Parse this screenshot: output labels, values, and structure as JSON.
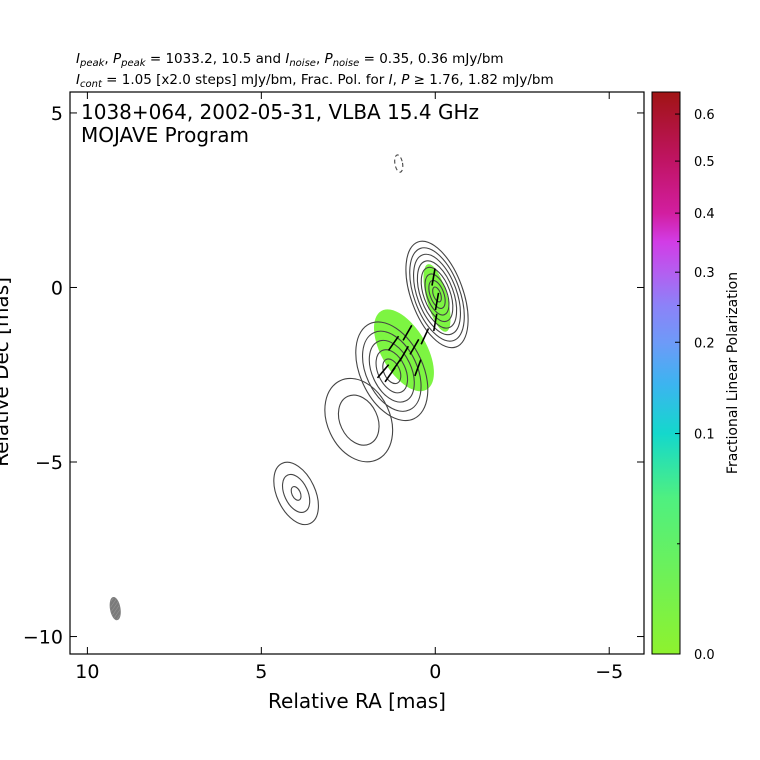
{
  "header": {
    "line1_parts": [
      {
        "t": "I",
        "i": true
      },
      {
        "t": "peak",
        "sub": true
      },
      {
        "t": ", "
      },
      {
        "t": "P",
        "i": true
      },
      {
        "t": "peak",
        "sub": true
      },
      {
        "t": " = 1033.2, 10.5 and "
      },
      {
        "t": "I",
        "i": true
      },
      {
        "t": "noise",
        "sub": true
      },
      {
        "t": ", "
      },
      {
        "t": "P",
        "i": true
      },
      {
        "t": "noise",
        "sub": true
      },
      {
        "t": " = 0.35, 0.36 mJy/bm"
      }
    ],
    "line2_parts": [
      {
        "t": "I",
        "i": true
      },
      {
        "t": "cont",
        "sub": true
      },
      {
        "t": " = 1.05 [x2.0 steps] mJy/bm, Frac. Pol. for "
      },
      {
        "t": "I",
        "i": true
      },
      {
        "t": ", "
      },
      {
        "t": "P",
        "i": true
      },
      {
        "t": " ≥  1.76, 1.82 mJy/bm"
      }
    ]
  },
  "chart_data": {
    "type": "contour",
    "title_line1": "1038+064, 2002-05-31, VLBA 15.4 GHz",
    "title_line2": "MOJAVE Program",
    "xlabel": "Relative RA [mas]",
    "ylabel": "Relative Dec [mas]",
    "xlim": [
      10.5,
      -6.0
    ],
    "ylim": [
      -10.5,
      5.6
    ],
    "x_ticks": [
      {
        "value": 10,
        "label": "10"
      },
      {
        "value": 5,
        "label": "5"
      },
      {
        "value": 0,
        "label": "0"
      },
      {
        "value": -5,
        "label": "−5"
      }
    ],
    "y_ticks": [
      {
        "value": 5,
        "label": "5"
      },
      {
        "value": 0,
        "label": "0"
      },
      {
        "value": -5,
        "label": "−5"
      },
      {
        "value": -10,
        "label": "−10"
      }
    ],
    "colors": {
      "contour": "#444444",
      "negative_contour": "#444444",
      "beam": "#808080",
      "evpa_stick": "#000000",
      "frac_pol_fill": "#7df542"
    },
    "components": [
      {
        "name": "core",
        "x": -0.05,
        "y": -0.2,
        "bmaj": 3.2,
        "bmin": 1.5,
        "pa_deg": -20,
        "levels": 8,
        "inner_scale": 0.14
      },
      {
        "name": "inner-jet",
        "x": 1.25,
        "y": -2.4,
        "bmaj": 3.0,
        "bmin": 1.8,
        "pa_deg": -25,
        "levels": 5,
        "inner_scale": 0.25
      },
      {
        "name": "extended-jet",
        "x": 2.2,
        "y": -3.8,
        "bmaj": 2.5,
        "bmin": 1.8,
        "pa_deg": -25,
        "levels": 2,
        "inner_scale": 0.6
      },
      {
        "name": "outer-component",
        "x": 4.0,
        "y": -5.9,
        "bmaj": 1.9,
        "bmin": 1.1,
        "pa_deg": -25,
        "levels": 3,
        "inner_scale": 0.22
      }
    ],
    "negative_contours": [
      {
        "x": 1.05,
        "y": 3.55,
        "bmaj": 0.5,
        "bmin": 0.22,
        "pa_deg": -10
      }
    ],
    "beam": {
      "x": 9.2,
      "y": -9.2,
      "bmaj": 0.65,
      "bmin": 0.28,
      "pa_deg": -10
    },
    "fractional_pol_regions": [
      {
        "x": -0.05,
        "y": -0.3,
        "rx": 0.3,
        "ry": 1.0,
        "pa_deg": -15,
        "frac_pol": 0.01
      },
      {
        "x": 0.9,
        "y": -1.8,
        "rx": 0.65,
        "ry": 1.3,
        "pa_deg": -30,
        "frac_pol": 0.01
      }
    ],
    "evpa_sticks": [
      {
        "x": 0.05,
        "y": 0.3,
        "angle_deg": 80,
        "length": 0.5
      },
      {
        "x": -0.05,
        "y": -0.4,
        "angle_deg": 80,
        "length": 0.5
      },
      {
        "x": 0.0,
        "y": -1.0,
        "angle_deg": 80,
        "length": 0.5
      },
      {
        "x": 0.3,
        "y": -1.4,
        "angle_deg": 65,
        "length": 0.5
      },
      {
        "x": 0.6,
        "y": -1.7,
        "angle_deg": 60,
        "length": 0.5
      },
      {
        "x": 0.9,
        "y": -1.9,
        "angle_deg": 60,
        "length": 0.5
      },
      {
        "x": 1.1,
        "y": -2.2,
        "angle_deg": 55,
        "length": 0.5
      },
      {
        "x": 1.3,
        "y": -2.5,
        "angle_deg": 55,
        "length": 0.5
      },
      {
        "x": 0.8,
        "y": -1.3,
        "angle_deg": 60,
        "length": 0.5
      },
      {
        "x": 1.2,
        "y": -1.6,
        "angle_deg": 55,
        "length": 0.5
      },
      {
        "x": 0.5,
        "y": -2.3,
        "angle_deg": 70,
        "length": 0.5
      },
      {
        "x": 1.5,
        "y": -2.4,
        "angle_deg": 50,
        "length": 0.5
      }
    ],
    "colorbar": {
      "label": "Fractional Linear Polarization",
      "range": [
        0.0,
        0.65
      ],
      "stretch": "sqrt",
      "tick_values": [
        0.0,
        0.1,
        0.2,
        0.3,
        0.4,
        0.5,
        0.6
      ],
      "tick_labels": [
        "0.0",
        "0.1",
        "0.2",
        "0.3",
        "0.4",
        "0.5",
        "0.6"
      ],
      "minor_ticks": [
        0.025,
        0.25,
        0.35
      ],
      "stops": [
        {
          "v": 0.0,
          "color": "#8ef22e"
        },
        {
          "v": 0.05,
          "color": "#4ff080"
        },
        {
          "v": 0.1,
          "color": "#14d8cc"
        },
        {
          "v": 0.15,
          "color": "#3cb4f0"
        },
        {
          "v": 0.2,
          "color": "#6e9af8"
        },
        {
          "v": 0.25,
          "color": "#8c82f8"
        },
        {
          "v": 0.3,
          "color": "#b45ef0"
        },
        {
          "v": 0.35,
          "color": "#d23ce6"
        },
        {
          "v": 0.4,
          "color": "#d21ea0"
        },
        {
          "v": 0.5,
          "color": "#c01464"
        },
        {
          "v": 0.65,
          "color": "#a01414"
        }
      ]
    }
  }
}
